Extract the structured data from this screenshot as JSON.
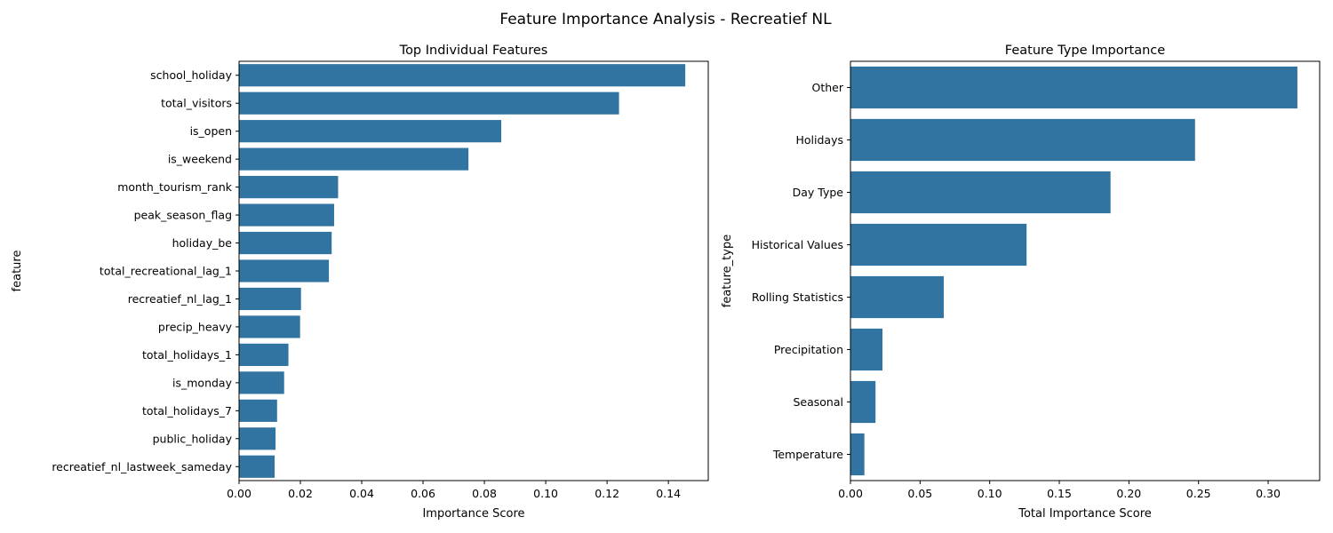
{
  "figure_title": "Feature Importance Analysis - Recreatief NL",
  "bar_color": "#3274a1",
  "chart_data": [
    {
      "type": "bar",
      "orientation": "horizontal",
      "title": "Top Individual Features",
      "xlabel": "Importance Score",
      "ylabel": "feature",
      "categories": [
        "school_holiday",
        "total_visitors",
        "is_open",
        "is_weekend",
        "month_tourism_rank",
        "peak_season_flag",
        "holiday_be",
        "total_recreational_lag_1",
        "recreatief_nl_lag_1",
        "precip_heavy",
        "total_holidays_1",
        "is_monday",
        "total_holidays_7",
        "public_holiday",
        "recreatief_nl_lastweek_sameday"
      ],
      "values": [
        0.1455,
        0.1239,
        0.0855,
        0.0748,
        0.0323,
        0.031,
        0.0302,
        0.0293,
        0.0202,
        0.0199,
        0.0161,
        0.0147,
        0.0124,
        0.0119,
        0.0116
      ],
      "xlim": [
        0,
        0.153
      ],
      "xticks": [
        0.0,
        0.02,
        0.04,
        0.06,
        0.08,
        0.1,
        0.12,
        0.14
      ],
      "xtick_labels": [
        "0.00",
        "0.02",
        "0.04",
        "0.06",
        "0.08",
        "0.10",
        "0.12",
        "0.14"
      ],
      "grid": false,
      "legend": "none"
    },
    {
      "type": "bar",
      "orientation": "horizontal",
      "title": "Feature Type Importance",
      "xlabel": "Total Importance Score",
      "ylabel": "feature_type",
      "categories": [
        "Other",
        "Holidays",
        "Day Type",
        "Historical Values",
        "Rolling Statistics",
        "Precipitation",
        "Seasonal",
        "Temperature"
      ],
      "values": [
        0.321,
        0.2475,
        0.1868,
        0.1265,
        0.067,
        0.023,
        0.018,
        0.01
      ],
      "xlim": [
        0,
        0.337
      ],
      "xticks": [
        0.0,
        0.05,
        0.1,
        0.15,
        0.2,
        0.25,
        0.3
      ],
      "xtick_labels": [
        "0.00",
        "0.05",
        "0.10",
        "0.15",
        "0.20",
        "0.25",
        "0.30"
      ],
      "grid": false,
      "legend": "none"
    }
  ]
}
